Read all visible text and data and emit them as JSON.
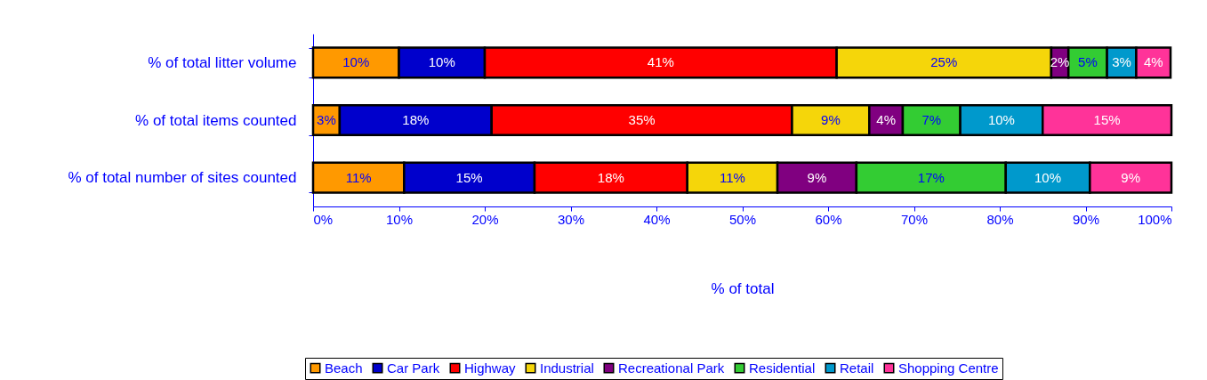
{
  "chart_data": {
    "type": "bar",
    "orientation": "horizontal",
    "stacked": true,
    "xlabel": "% of total",
    "categories": [
      "% of total litter volume",
      "% of total items counted",
      "% of total number of sites counted"
    ],
    "xlim": [
      0,
      100
    ],
    "xticks": [
      {
        "value": 0,
        "label": "0%"
      },
      {
        "value": 10,
        "label": "10%"
      },
      {
        "value": 20,
        "label": "20%"
      },
      {
        "value": 30,
        "label": "30%"
      },
      {
        "value": 40,
        "label": "40%"
      },
      {
        "value": 50,
        "label": "50%"
      },
      {
        "value": 60,
        "label": "60%"
      },
      {
        "value": 70,
        "label": "70%"
      },
      {
        "value": 80,
        "label": "80%"
      },
      {
        "value": 90,
        "label": "90%"
      },
      {
        "value": 100,
        "label": "100%"
      }
    ],
    "grid": false,
    "legend": "bottom",
    "series": [
      {
        "name": "Beach",
        "color": "#ff9900",
        "values": [
          10,
          3.1,
          10.6
        ],
        "value_labels": [
          "10%",
          "3%",
          "11%"
        ]
      },
      {
        "name": "Car Park",
        "color": "#0000cc",
        "values": [
          10,
          17.7,
          15.2
        ],
        "value_labels": [
          "10%",
          "18%",
          "15%"
        ]
      },
      {
        "name": "Highway",
        "color": "#ff0000",
        "values": [
          41,
          35,
          17.8
        ],
        "value_labels": [
          "41%",
          "35%",
          "18%"
        ]
      },
      {
        "name": "Industrial",
        "color": "#f5d60a",
        "values": [
          25,
          9,
          10.5
        ],
        "value_labels": [
          "25%",
          "9%",
          "11%"
        ]
      },
      {
        "name": "Recreational Park",
        "color": "#800080",
        "values": [
          2,
          3.9,
          9.2
        ],
        "value_labels": [
          "2%",
          "4%",
          "9%"
        ]
      },
      {
        "name": "Residential",
        "color": "#33cc33",
        "values": [
          4.5,
          6.7,
          17.4
        ],
        "value_labels": [
          "5%",
          "7%",
          "17%"
        ]
      },
      {
        "name": "Retail",
        "color": "#0099cc",
        "values": [
          3.4,
          9.6,
          9.8
        ],
        "value_labels": [
          "3%",
          "10%",
          "10%"
        ]
      },
      {
        "name": "Shopping Centre",
        "color": "#ff3399",
        "values": [
          4,
          15,
          9.5
        ],
        "value_labels": [
          "4%",
          "15%",
          "9%"
        ]
      }
    ]
  }
}
